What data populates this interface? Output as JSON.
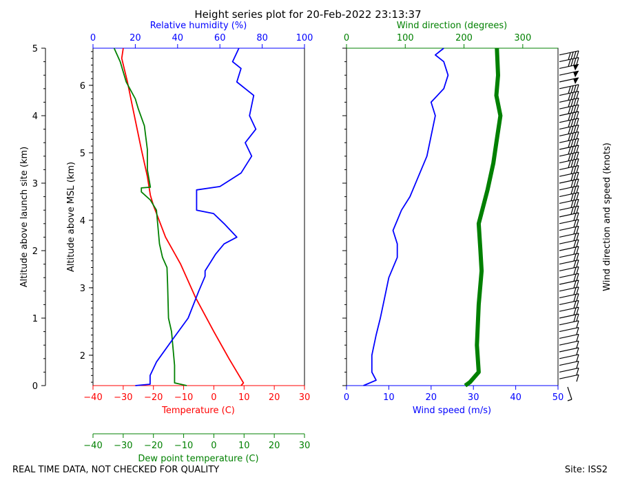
{
  "title": "Height series plot for 20-Feb-2022 23:13:37",
  "footer": {
    "left": "REAL TIME DATA, NOT CHECKED FOR QUALITY",
    "right": "Site: ISS2"
  },
  "colors": {
    "temperature": "#ff0000",
    "dewpoint": "#008000",
    "humidity": "#0000ff",
    "wind_speed": "#0000ff",
    "wind_direction": "#008000",
    "barbs": "#000000"
  },
  "chart_data": [
    {
      "type": "line",
      "panel": "thermo",
      "axes": {
        "agl": {
          "label": "Altitude above launch site (km)",
          "range": [
            0,
            5
          ],
          "ticks": [
            0,
            1,
            2,
            3,
            4,
            5
          ]
        },
        "msl": {
          "label": "Altitude above MSL (km)",
          "ticks": [
            2,
            3,
            4,
            5,
            6
          ]
        },
        "temperature": {
          "label": "Temperature (C)",
          "range": [
            -40,
            30
          ],
          "ticks": [
            -40,
            -30,
            -20,
            -10,
            0,
            10,
            20,
            30
          ]
        },
        "dewpoint": {
          "label": "Dew point temperature (C)",
          "range": [
            -40,
            30
          ],
          "ticks": [
            -40,
            -30,
            -20,
            -10,
            0,
            10,
            20,
            30
          ]
        },
        "humidity": {
          "label": "Relative humidity (%)",
          "range": [
            0,
            100
          ],
          "ticks": [
            0,
            20,
            40,
            60,
            80,
            100
          ]
        }
      },
      "series": [
        {
          "name": "Temperature",
          "unit": "C",
          "points": [
            [
              9,
              0
            ],
            [
              9.8,
              0.04
            ],
            [
              5,
              0.4
            ],
            [
              0,
              0.8
            ],
            [
              -6,
              1.3
            ],
            [
              -11,
              1.8
            ],
            [
              -16,
              2.2
            ],
            [
              -20,
              2.67
            ],
            [
              -21,
              2.82
            ],
            [
              -22,
              3.1
            ],
            [
              -24,
              3.5
            ],
            [
              -27,
              4.15
            ],
            [
              -28.6,
              4.5
            ],
            [
              -30.5,
              4.85
            ],
            [
              -30,
              5.0
            ]
          ]
        },
        {
          "name": "Dew point",
          "unit": "C",
          "points": [
            [
              -9,
              0
            ],
            [
              -13,
              0.04
            ],
            [
              -13,
              0.3
            ],
            [
              -14,
              0.8
            ],
            [
              -15,
              1.0
            ],
            [
              -15.3,
              1.5
            ],
            [
              -15.5,
              1.75
            ],
            [
              -17,
              1.9
            ],
            [
              -18,
              2.1
            ],
            [
              -19,
              2.6
            ],
            [
              -21,
              2.75
            ],
            [
              -24,
              2.87
            ],
            [
              -24,
              2.93
            ],
            [
              -21,
              2.94
            ],
            [
              -22,
              3.2
            ],
            [
              -22,
              3.5
            ],
            [
              -23,
              3.85
            ],
            [
              -25,
              4.1
            ],
            [
              -26,
              4.25
            ],
            [
              -29,
              4.5
            ],
            [
              -31,
              4.8
            ],
            [
              -33,
              5.0
            ]
          ]
        },
        {
          "name": "Relative humidity",
          "unit": "%",
          "points": [
            [
              20,
              0
            ],
            [
              27,
              0.02
            ],
            [
              27,
              0.15
            ],
            [
              30,
              0.35
            ],
            [
              38,
              0.7
            ],
            [
              45,
              1.0
            ],
            [
              50,
              1.4
            ],
            [
              53,
              1.62
            ],
            [
              53,
              1.7
            ],
            [
              58,
              1.95
            ],
            [
              62,
              2.1
            ],
            [
              68,
              2.2
            ],
            [
              62,
              2.4
            ],
            [
              57,
              2.55
            ],
            [
              49,
              2.6
            ],
            [
              49,
              2.9
            ],
            [
              60,
              2.95
            ],
            [
              70,
              3.15
            ],
            [
              75,
              3.4
            ],
            [
              72,
              3.6
            ],
            [
              77,
              3.8
            ],
            [
              74,
              4.0
            ],
            [
              76,
              4.3
            ],
            [
              68,
              4.5
            ],
            [
              70,
              4.7
            ],
            [
              66,
              4.8
            ],
            [
              69,
              5.0
            ]
          ]
        }
      ]
    },
    {
      "type": "line",
      "panel": "wind",
      "axes": {
        "wind_speed": {
          "label": "Wind speed (m/s)",
          "range": [
            0,
            50
          ],
          "ticks": [
            0,
            10,
            20,
            30,
            40,
            50
          ]
        },
        "wind_direction": {
          "label": "Wind direction (degrees)",
          "range": [
            0,
            360
          ],
          "ticks": [
            0,
            100,
            200,
            300
          ]
        },
        "barbs": {
          "label": "Wind direction and speed (knots)"
        }
      },
      "series": [
        {
          "name": "Wind speed",
          "unit": "m/s",
          "points": [
            [
              4,
              0
            ],
            [
              7,
              0.08
            ],
            [
              6,
              0.2
            ],
            [
              6,
              0.45
            ],
            [
              7,
              0.75
            ],
            [
              8,
              1.0
            ],
            [
              9,
              1.3
            ],
            [
              10,
              1.6
            ],
            [
              12,
              1.9
            ],
            [
              12,
              2.1
            ],
            [
              11,
              2.3
            ],
            [
              12,
              2.45
            ],
            [
              13,
              2.6
            ],
            [
              15,
              2.8
            ],
            [
              17,
              3.1
            ],
            [
              19,
              3.4
            ],
            [
              20,
              3.7
            ],
            [
              21,
              4.0
            ],
            [
              20,
              4.2
            ],
            [
              23,
              4.4
            ],
            [
              24,
              4.6
            ],
            [
              23,
              4.8
            ],
            [
              21,
              4.9
            ],
            [
              23,
              5.0
            ]
          ]
        },
        {
          "name": "Wind direction",
          "unit": "deg",
          "points": [
            [
              202,
              0
            ],
            [
              210,
              0.05
            ],
            [
              225,
              0.2
            ],
            [
              222,
              0.6
            ],
            [
              225,
              1.2
            ],
            [
              230,
              1.7
            ],
            [
              228,
              2.0
            ],
            [
              225,
              2.4
            ],
            [
              240,
              2.9
            ],
            [
              250,
              3.3
            ],
            [
              255,
              3.6
            ],
            [
              262,
              4.0
            ],
            [
              255,
              4.3
            ],
            [
              258,
              4.6
            ],
            [
              256,
              5.0
            ]
          ]
        }
      ]
    }
  ]
}
